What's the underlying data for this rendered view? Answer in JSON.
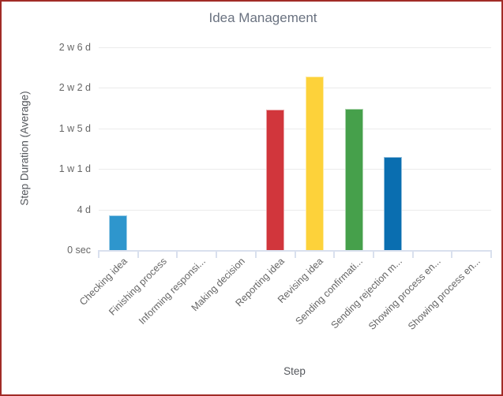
{
  "frame": {
    "border_color": "#a12b27"
  },
  "colors": {
    "title_text": "#6a7280",
    "axis_title_text": "#54575c",
    "tick_label_text": "#666666",
    "gridline": "#ebebeb",
    "axis_line": "#d9e0ee",
    "plot_background": "#ffffff"
  },
  "chart_data": {
    "type": "bar",
    "title": "Idea Management",
    "xlabel": "Step",
    "ylabel": "Step Duration (Average)",
    "legend": "none",
    "grid": "horizontal",
    "categories": [
      "Checking idea",
      "Finishing process",
      "Informing responsi...",
      "Making decision",
      "Reporting idea",
      "Revising idea",
      "Sending confirmati...",
      "Sending rejection m...",
      "Showing process en...",
      "Showing process en..."
    ],
    "values_avg_duration_days": [
      3.4,
      0,
      0,
      0,
      13.8,
      17.1,
      13.9,
      9.2,
      0,
      0
    ],
    "bar_colors": [
      "#2e96cd",
      "",
      "",
      "",
      "#d1363c",
      "#fdd23a",
      "#46a04b",
      "#0a6eb0",
      "",
      ""
    ],
    "y_axis": {
      "max_days": 20,
      "tick_step_days": 4,
      "ticks": [
        {
          "days": 0,
          "label": "0 sec"
        },
        {
          "days": 4,
          "label": "4 d"
        },
        {
          "days": 8,
          "label": "1 w 1 d"
        },
        {
          "days": 12,
          "label": "1 w 5 d"
        },
        {
          "days": 16,
          "label": "2 w 2 d"
        },
        {
          "days": 20,
          "label": "2 w 6 d"
        }
      ]
    }
  }
}
